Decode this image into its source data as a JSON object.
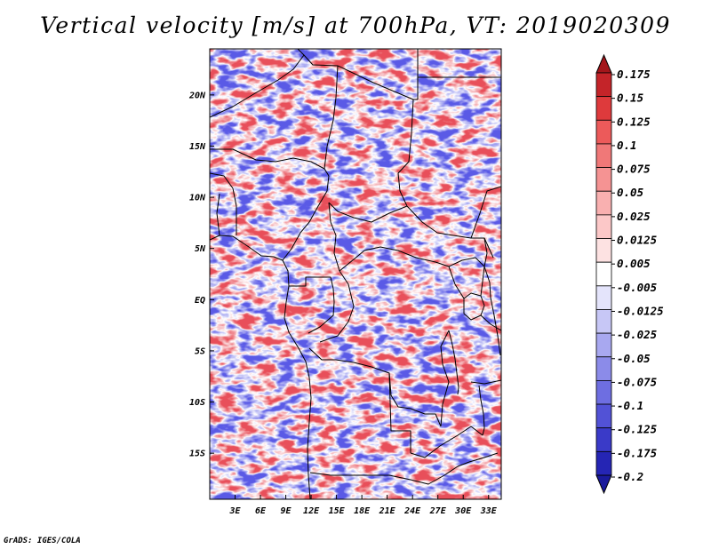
{
  "title": "Vertical velocity [m/s] at 700hPa, VT: 2019020309",
  "credit": "GrADS: IGES/COLA",
  "map": {
    "lat_range": [
      -19.5,
      24.5
    ],
    "lon_range": [
      0,
      34.5
    ],
    "lat_ticks": [
      {
        "value": 20,
        "label": "20N"
      },
      {
        "value": 15,
        "label": "15N"
      },
      {
        "value": 10,
        "label": "10N"
      },
      {
        "value": 5,
        "label": "5N"
      },
      {
        "value": 0,
        "label": "EQ"
      },
      {
        "value": -5,
        "label": "5S"
      },
      {
        "value": -10,
        "label": "10S"
      },
      {
        "value": -15,
        "label": "15S"
      }
    ],
    "lon_ticks": [
      {
        "value": 3,
        "label": "3E"
      },
      {
        "value": 6,
        "label": "6E"
      },
      {
        "value": 9,
        "label": "9E"
      },
      {
        "value": 12,
        "label": "12E"
      },
      {
        "value": 15,
        "label": "15E"
      },
      {
        "value": 18,
        "label": "18E"
      },
      {
        "value": 21,
        "label": "21E"
      },
      {
        "value": 24,
        "label": "24E"
      },
      {
        "value": 27,
        "label": "27E"
      },
      {
        "value": 30,
        "label": "30E"
      },
      {
        "value": 33,
        "label": "33E"
      }
    ],
    "field_colors": {
      "positive": "#e8505a",
      "negative": "#5a5ae6"
    }
  },
  "colorbar": {
    "levels": [
      {
        "label": "0.175",
        "color": "#a4161b"
      },
      {
        "label": "0.15",
        "color": "#c42429"
      },
      {
        "label": "0.125",
        "color": "#de3a3c"
      },
      {
        "label": "0.1",
        "color": "#ec5a5a"
      },
      {
        "label": "0.075",
        "color": "#f07878"
      },
      {
        "label": "0.05",
        "color": "#f59393"
      },
      {
        "label": "0.025",
        "color": "#f9b0b0"
      },
      {
        "label": "0.0125",
        "color": "#fcc8c8"
      },
      {
        "label": "0.005",
        "color": "#fde2e2"
      },
      {
        "label": "-0.005",
        "color": "#ffffff"
      },
      {
        "label": "-0.0125",
        "color": "#e4e4fb"
      },
      {
        "label": "-0.025",
        "color": "#c7c7f6"
      },
      {
        "label": "-0.05",
        "color": "#a8a8f0"
      },
      {
        "label": "-0.075",
        "color": "#8b8be9"
      },
      {
        "label": "-0.1",
        "color": "#6e6ee1"
      },
      {
        "label": "-0.125",
        "color": "#5252d6"
      },
      {
        "label": "-0.175",
        "color": "#3a3ac8"
      },
      {
        "label": "-0.2",
        "color": "#2525b4"
      }
    ],
    "bottom_color": "#1a1a9c"
  }
}
